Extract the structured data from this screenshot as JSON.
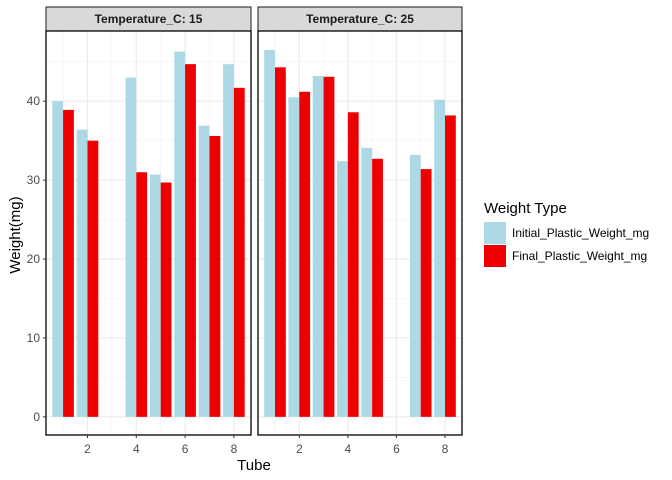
{
  "chart_data": {
    "type": "bar",
    "xlabel": "Tube",
    "ylabel": "Weight(mg)",
    "x_ticks": [
      2,
      4,
      6,
      8
    ],
    "y_ticks": [
      0,
      10,
      20,
      30,
      40
    ],
    "xlim": [
      0.3,
      8.7
    ],
    "ylim": [
      -2.3,
      48.9
    ],
    "legend": {
      "title": "Weight Type",
      "position": "right",
      "entries": [
        {
          "name": "Initial_Plastic_Weight_mg",
          "color": "#ADD8E6"
        },
        {
          "name": "Final_Plastic_Weight_mg",
          "color": "#EE0000"
        }
      ]
    },
    "panels": [
      {
        "strip": "Temperature_C: 15",
        "x": [
          1,
          2,
          4,
          5,
          6,
          7,
          8
        ],
        "series": [
          {
            "name": "Initial_Plastic_Weight_mg",
            "values": [
              40.0,
              36.4,
              43.0,
              30.7,
              46.3,
              36.9,
              44.7
            ]
          },
          {
            "name": "Final_Plastic_Weight_mg",
            "values": [
              38.9,
              35.0,
              31.0,
              29.7,
              44.7,
              35.6,
              41.7
            ]
          }
        ]
      },
      {
        "strip": "Temperature_C: 25",
        "x": [
          1,
          2,
          3,
          4,
          5,
          7,
          8
        ],
        "series": [
          {
            "name": "Initial_Plastic_Weight_mg",
            "values": [
              46.5,
              40.5,
              43.2,
              32.4,
              34.1,
              33.2,
              40.2
            ]
          },
          {
            "name": "Final_Plastic_Weight_mg",
            "values": [
              44.3,
              41.2,
              43.1,
              38.6,
              32.7,
              31.4,
              38.2
            ]
          }
        ]
      }
    ]
  }
}
